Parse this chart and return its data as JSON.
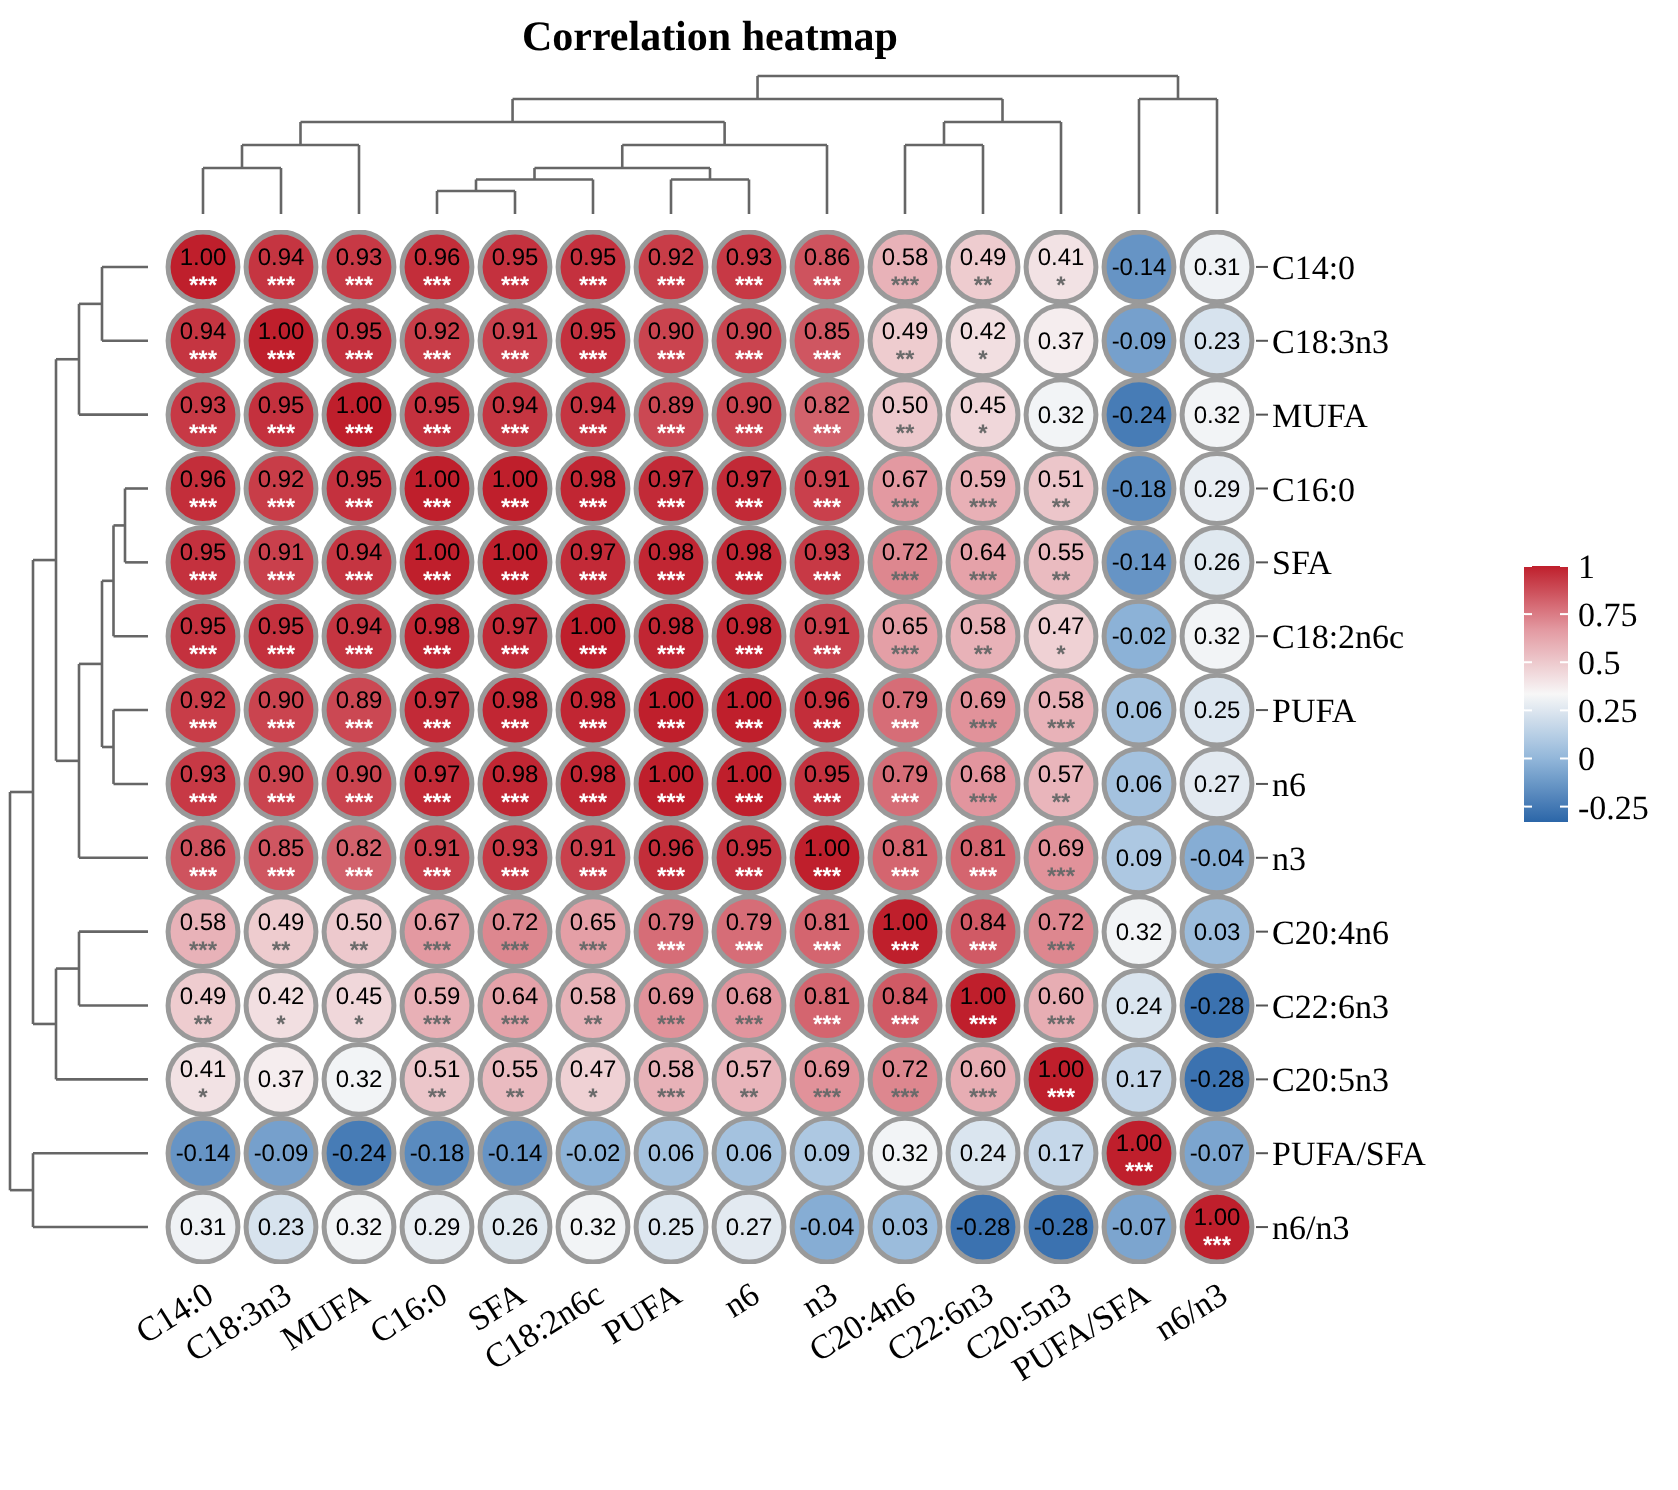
{
  "chart_data": {
    "type": "heatmap",
    "title": "Correlation heatmap",
    "categories": [
      "C14:0",
      "C18:3n3",
      "MUFA",
      "C16:0",
      "SFA",
      "C18:2n6c",
      "PUFA",
      "n6",
      "n3",
      "C20:4n6",
      "C22:6n3",
      "C20:5n3",
      "PUFA/SFA",
      "n6/n3"
    ],
    "y_categories": [
      "C14:0",
      "C18:3n3",
      "MUFA",
      "C16:0",
      "SFA",
      "C18:2n6c",
      "PUFA",
      "n6",
      "n3",
      "C20:4n6",
      "C22:6n3",
      "C20:5n3",
      "PUFA/SFA",
      "n6/n3"
    ],
    "cells": [
      [
        1.0,
        0.94,
        0.93,
        0.96,
        0.95,
        0.95,
        0.92,
        0.93,
        0.86,
        0.58,
        0.49,
        0.41,
        -0.14,
        0.31
      ],
      [
        0.94,
        1.0,
        0.95,
        0.92,
        0.91,
        0.95,
        0.9,
        0.9,
        0.85,
        0.49,
        0.42,
        0.37,
        -0.09,
        0.23
      ],
      [
        0.93,
        0.95,
        1.0,
        0.95,
        0.94,
        0.94,
        0.89,
        0.9,
        0.82,
        0.5,
        0.45,
        0.32,
        -0.24,
        0.32
      ],
      [
        0.96,
        0.92,
        0.95,
        1.0,
        1.0,
        0.98,
        0.97,
        0.97,
        0.91,
        0.67,
        0.59,
        0.51,
        -0.18,
        0.29
      ],
      [
        0.95,
        0.91,
        0.94,
        1.0,
        1.0,
        0.97,
        0.98,
        0.98,
        0.93,
        0.72,
        0.64,
        0.55,
        -0.14,
        0.26
      ],
      [
        0.95,
        0.95,
        0.94,
        0.98,
        0.97,
        1.0,
        0.98,
        0.98,
        0.91,
        0.65,
        0.58,
        0.47,
        -0.02,
        0.32
      ],
      [
        0.92,
        0.9,
        0.89,
        0.97,
        0.98,
        0.98,
        1.0,
        1.0,
        0.96,
        0.79,
        0.69,
        0.58,
        0.06,
        0.25
      ],
      [
        0.93,
        0.9,
        0.9,
        0.97,
        0.98,
        0.98,
        1.0,
        1.0,
        0.95,
        0.79,
        0.68,
        0.57,
        0.06,
        0.27
      ],
      [
        0.86,
        0.85,
        0.82,
        0.91,
        0.93,
        0.91,
        0.96,
        0.95,
        1.0,
        0.81,
        0.81,
        0.69,
        0.09,
        -0.04
      ],
      [
        0.58,
        0.49,
        0.5,
        0.67,
        0.72,
        0.65,
        0.79,
        0.79,
        0.81,
        1.0,
        0.84,
        0.72,
        0.32,
        0.03
      ],
      [
        0.49,
        0.42,
        0.45,
        0.59,
        0.64,
        0.58,
        0.69,
        0.68,
        0.81,
        0.84,
        1.0,
        0.6,
        0.24,
        -0.28
      ],
      [
        0.41,
        0.37,
        0.32,
        0.51,
        0.55,
        0.47,
        0.58,
        0.57,
        0.69,
        0.72,
        0.6,
        1.0,
        0.17,
        -0.28
      ],
      [
        -0.14,
        -0.09,
        -0.24,
        -0.18,
        -0.14,
        -0.02,
        0.06,
        0.06,
        0.09,
        0.32,
        0.24,
        0.17,
        1.0,
        -0.07
      ],
      [
        0.31,
        0.23,
        0.32,
        0.29,
        0.26,
        0.32,
        0.25,
        0.27,
        -0.04,
        0.03,
        -0.28,
        -0.28,
        -0.07,
        1.0
      ]
    ],
    "cell_labels": [
      [
        "1.00\n***",
        "0.94\n***",
        "0.93\n***",
        "0.96\n***",
        "0.95\n***",
        "0.95\n***",
        "0.92\n***",
        "0.93\n***",
        "0.86\n***",
        "0.58\n***",
        "0.49\n**",
        "0.41\n*",
        "-0.14",
        "0.31"
      ],
      [
        "0.94\n***",
        "1.00\n***",
        "0.95\n***",
        "0.92\n***",
        "0.91\n***",
        "0.95\n***",
        "0.90\n***",
        "0.90\n***",
        "0.85\n***",
        "0.49\n**",
        "0.42\n*",
        "0.37",
        "-0.09",
        "0.23"
      ],
      [
        "0.93\n***",
        "0.95\n***",
        "1.00\n***",
        "0.95\n***",
        "0.94\n***",
        "0.94\n***",
        "0.89\n***",
        "0.90\n***",
        "0.82\n***",
        "0.50\n**",
        "0.45\n*",
        "0.32",
        "-0.24",
        "0.32"
      ],
      [
        "0.96\n***",
        "0.92\n***",
        "0.95\n***",
        "1.00\n***",
        "1.00\n***",
        "0.98\n***",
        "0.97\n***",
        "0.97\n***",
        "0.91\n***",
        "0.67\n***",
        "0.59\n***",
        "0.51\n**",
        "-0.18",
        "0.29"
      ],
      [
        "0.95\n***",
        "0.91\n***",
        "0.94\n***",
        "1.00\n***",
        "1.00\n***",
        "0.97\n***",
        "0.98\n***",
        "0.98\n***",
        "0.93\n***",
        "0.72\n***",
        "0.64\n***",
        "0.55\n**",
        "-0.14",
        "0.26"
      ],
      [
        "0.95\n***",
        "0.95\n***",
        "0.94\n***",
        "0.98\n***",
        "0.97\n***",
        "1.00\n***",
        "0.98\n***",
        "0.98\n***",
        "0.91\n***",
        "0.65\n***",
        "0.58\n**",
        "0.47\n*",
        "-0.02",
        "0.32"
      ],
      [
        "0.92\n***",
        "0.90\n***",
        "0.89\n***",
        "0.97\n***",
        "0.98\n***",
        "0.98\n***",
        "1.00\n***",
        "1.00\n***",
        "0.96\n***",
        "0.79\n***",
        "0.69\n***",
        "0.58\n***",
        "0.06",
        "0.25"
      ],
      [
        "0.93\n***",
        "0.90\n***",
        "0.90\n***",
        "0.97\n***",
        "0.98\n***",
        "0.98\n***",
        "1.00\n***",
        "1.00\n***",
        "0.95\n***",
        "0.79\n***",
        "0.68\n***",
        "0.57\n**",
        "0.06",
        "0.27"
      ],
      [
        "0.86\n***",
        "0.85\n***",
        "0.82\n***",
        "0.91\n***",
        "0.93\n***",
        "0.91\n***",
        "0.96\n***",
        "0.95\n***",
        "1.00\n***",
        "0.81\n***",
        "0.81\n***",
        "0.69\n***",
        "0.09",
        "-0.04"
      ],
      [
        "0.58\n***",
        "0.49\n**",
        "0.50\n**",
        "0.67\n***",
        "0.72\n***",
        "0.65\n***",
        "0.79\n***",
        "0.79\n***",
        "0.81\n***",
        "1.00\n***",
        "0.84\n***",
        "0.72\n***",
        "0.32",
        "0.03"
      ],
      [
        "0.49\n**",
        "0.42\n*",
        "0.45\n*",
        "0.59\n***",
        "0.64\n***",
        "0.58\n**",
        "0.69\n***",
        "0.68\n***",
        "0.81\n***",
        "0.84\n***",
        "1.00\n***",
        "0.60\n***",
        "0.24",
        "-0.28"
      ],
      [
        "0.41\n*",
        "0.37",
        "0.32",
        "0.51\n**",
        "0.55\n**",
        "0.47\n*",
        "0.58\n***",
        "0.57\n**",
        "0.69\n***",
        "0.72\n***",
        "0.60\n***",
        "1.00\n***",
        "0.17",
        "-0.28"
      ],
      [
        "-0.14",
        "-0.09",
        "-0.24",
        "-0.18",
        "-0.14",
        "-0.02",
        "0.06",
        "0.06",
        "0.09",
        "0.32",
        "0.24",
        "0.17",
        "1.00\n***",
        "-0.07"
      ],
      [
        "0.31",
        "0.23",
        "0.32",
        "0.29",
        "0.26",
        "0.32",
        "0.25",
        "0.27",
        "-0.04",
        "0.03",
        "-0.28",
        "-0.28",
        "-0.07",
        "1.00\n***"
      ]
    ],
    "clim": [
      -0.33,
      1
    ],
    "cticks": [
      {
        "value": -0.25,
        "label": "-0.25"
      },
      0,
      0.25,
      0.5,
      0.75,
      1
    ],
    "colors": [
      "#2b66a8",
      "#93b7da",
      "#f7f7f7",
      "#e39aa2",
      "#bf1f2c"
    ]
  }
}
